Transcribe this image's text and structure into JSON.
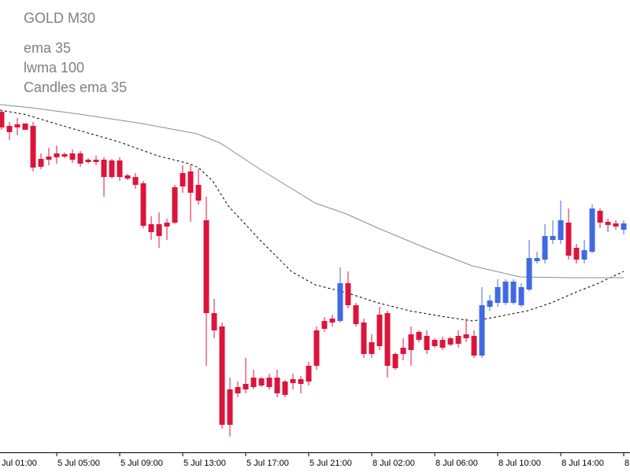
{
  "chart_data": {
    "type": "candlestick",
    "title": "GOLD M30",
    "xlim": [
      0.8,
      80.8
    ],
    "ylim": [
      0,
      575
    ],
    "xticks": [
      {
        "value": 0,
        "label": "5 Jul 01:00"
      },
      {
        "value": 8,
        "label": "5 Jul 05:00"
      },
      {
        "value": 16,
        "label": "5 Jul 09:00"
      },
      {
        "value": 24,
        "label": "5 Jul 13:00"
      },
      {
        "value": 32,
        "label": "5 Jul 17:00"
      },
      {
        "value": 40,
        "label": "5 Jul 21:00"
      },
      {
        "value": 48,
        "label": "8 Jul 02:00"
      },
      {
        "value": 56,
        "label": "8 Jul 06:00"
      },
      {
        "value": 64,
        "label": "8 Jul 10:00"
      },
      {
        "value": 72,
        "label": "8 Jul 14:00"
      },
      {
        "value": 80,
        "label": "8"
      }
    ],
    "series": [
      {
        "name": "ema 35",
        "color": "#000000",
        "dashed": true,
        "x": [
          0.8,
          3.8,
          8.8,
          15.8,
          20.8,
          24.8,
          26,
          27.8,
          29.8,
          33.8,
          37.8,
          40.8,
          44.8,
          48.8,
          52.8,
          56.8,
          60.8,
          63.8,
          67.8,
          70.8,
          73.8,
          76.8,
          80
        ],
        "values": [
          435,
          430,
          415,
          395,
          377,
          367,
          362,
          345,
          313,
          270,
          230,
          213,
          203,
          190,
          180,
          173,
          167,
          172,
          180,
          190,
          203,
          215,
          230
        ]
      },
      {
        "name": "lwma 100",
        "color": "#8c8c8c",
        "dashed": false,
        "x": [
          0.8,
          4.8,
          10.8,
          18.8,
          25.8,
          28.8,
          33.8,
          40.8,
          44.8,
          48.8,
          54.8,
          60.8,
          66.8,
          72.8,
          80
        ],
        "values": [
          442,
          438,
          430,
          418,
          405,
          393,
          360,
          317,
          303,
          285,
          260,
          237,
          223,
          222,
          222
        ]
      }
    ],
    "candles": {
      "name": "Candles ema 35",
      "up_color": "#4169e1",
      "down_color": "#dc143c",
      "x": [
        1,
        2,
        3,
        4,
        5,
        6,
        7,
        8,
        9,
        10,
        11,
        12,
        13,
        14,
        15,
        16,
        17,
        18,
        19,
        20,
        21,
        22,
        23,
        24,
        25,
        26,
        27,
        28,
        29,
        30,
        31,
        32,
        33,
        34,
        35,
        36,
        37,
        38,
        39,
        40,
        41,
        42,
        43,
        44,
        45,
        46,
        47,
        48,
        49,
        50,
        51,
        52,
        53,
        54,
        55,
        56,
        57,
        58,
        59,
        60,
        61,
        62,
        63,
        64,
        65,
        66,
        67,
        68,
        69,
        70,
        71,
        72,
        73,
        74,
        75,
        76,
        77,
        78,
        79,
        80
      ],
      "open": [
        433,
        415,
        417,
        418,
        415,
        373,
        376,
        380,
        379,
        380,
        380,
        372,
        372,
        372,
        371,
        371,
        352,
        350,
        342,
        290,
        290,
        292,
        337,
        355,
        357,
        340,
        295,
        177,
        160,
        80,
        83,
        87,
        95,
        94,
        95,
        95,
        90,
        93,
        93,
        110,
        155,
        167,
        170,
        167,
        215,
        187,
        165,
        140,
        175,
        177,
        125,
        133,
        150,
        153,
        148,
        143,
        143,
        145,
        148,
        150,
        148,
        123,
        185,
        190,
        190,
        190,
        187,
        207,
        243,
        245,
        270,
        270,
        292,
        260,
        245,
        255,
        307,
        293,
        291,
        283
      ],
      "high": [
        435,
        420,
        425,
        418,
        420,
        380,
        387,
        390,
        381,
        385,
        383,
        374,
        377,
        375,
        373,
        375,
        354,
        355,
        345,
        300,
        305,
        297,
        340,
        365,
        365,
        360,
        325,
        195,
        165,
        95,
        90,
        120,
        105,
        96,
        100,
        105,
        92,
        100,
        97,
        115,
        160,
        172,
        175,
        235,
        230,
        190,
        170,
        150,
        185,
        180,
        127,
        145,
        160,
        155,
        155,
        145,
        147,
        147,
        155,
        170,
        155,
        210,
        200,
        220,
        220,
        220,
        215,
        270,
        255,
        290,
        295,
        320,
        310,
        265,
        270,
        315,
        310,
        297,
        295,
        295
      ],
      "low": [
        410,
        397,
        403,
        410,
        357,
        360,
        365,
        367,
        374,
        368,
        363,
        367,
        365,
        325,
        348,
        345,
        346,
        335,
        285,
        270,
        260,
        270,
        290,
        330,
        293,
        315,
        110,
        145,
        30,
        20,
        70,
        75,
        80,
        83,
        80,
        70,
        70,
        80,
        75,
        85,
        105,
        153,
        160,
        165,
        183,
        160,
        120,
        120,
        130,
        95,
        105,
        117,
        110,
        140,
        125,
        133,
        130,
        135,
        133,
        140,
        120,
        120,
        180,
        185,
        187,
        188,
        185,
        205,
        240,
        240,
        265,
        265,
        245,
        240,
        240,
        253,
        285,
        280,
        283,
        277
      ],
      "close": [
        413,
        407,
        413,
        410,
        362,
        363,
        372,
        375,
        376,
        372,
        367,
        369,
        369,
        350,
        350,
        350,
        348,
        340,
        288,
        280,
        275,
        287,
        292,
        338,
        330,
        320,
        177,
        155,
        35,
        35,
        75,
        80,
        83,
        85,
        83,
        75,
        73,
        88,
        87,
        90,
        110,
        157,
        165,
        215,
        187,
        163,
        125,
        125,
        135,
        110,
        107,
        125,
        130,
        143,
        130,
        135,
        133,
        137,
        138,
        145,
        123,
        187,
        193,
        210,
        217,
        217,
        210,
        247,
        247,
        275,
        275,
        295,
        250,
        245,
        257,
        310,
        292,
        289,
        287,
        291
      ]
    }
  }
}
